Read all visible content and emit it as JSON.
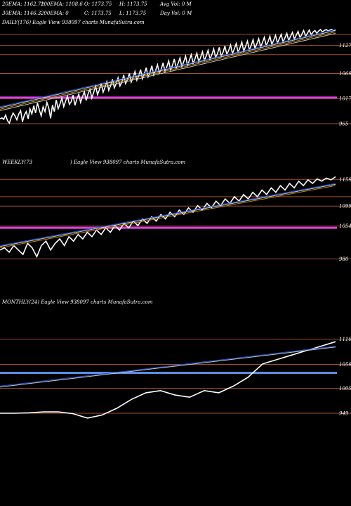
{
  "header": {
    "line1": [
      "20EMA: 1162.72",
      "100EMA: 1108.6",
      "O: 1173.75",
      "H: 1173.75",
      "Avg Vol: 0  M"
    ],
    "line2": [
      "30EMA: 1146.3",
      "200EMA: 0",
      "C: 1173.75",
      "L: 1173.75",
      "Day Vol: 0  M"
    ]
  },
  "colors": {
    "background": "#000000",
    "price": "#ffffff",
    "ema_fast": "#1f4fe0",
    "ema_slow": "#c8c8c8",
    "ema_orange": "#b8860b",
    "level": "#a0522d",
    "magenta_band": "#e040e0",
    "blue_band": "#5b8fe6"
  },
  "chart_data": [
    {
      "type": "line",
      "title": "DAILY(176) Eagle  View  938097 charts MunafaSutra.com",
      "ticks": [
        1127,
        1069,
        1017,
        965
      ],
      "ylim": [
        930,
        1160
      ],
      "band": {
        "value": 1019,
        "color": "magenta"
      },
      "levels": [
        1150,
        1127,
        1108,
        1069,
        1017,
        965
      ],
      "grid": false,
      "series": [
        {
          "role": "price",
          "values": [
            975,
            977,
            974,
            983,
            971,
            966,
            978,
            987,
            981,
            973,
            985,
            992,
            969,
            983,
            990,
            975,
            996,
            985,
            1002,
            987,
            1008,
            993,
            981,
            1000,
            990,
            1009,
            998,
            976,
            1004,
            990,
            1014,
            996,
            1006,
            1018,
            1000,
            1012,
            1022,
            1005,
            1011,
            1024,
            1003,
            1016,
            1026,
            1009,
            1021,
            1031,
            1013,
            1027,
            1036,
            1018,
            1030,
            1043,
            1025,
            1035,
            1049,
            1030,
            1040,
            1052,
            1034,
            1044,
            1057,
            1039,
            1048,
            1060,
            1043,
            1051,
            1066,
            1048,
            1056,
            1069,
            1051,
            1061,
            1073,
            1055,
            1064,
            1077,
            1058,
            1068,
            1081,
            1062,
            1071,
            1085,
            1066,
            1075,
            1087,
            1070,
            1078,
            1091,
            1073,
            1083,
            1095,
            1076,
            1086,
            1099,
            1080,
            1090,
            1101,
            1083,
            1093,
            1105,
            1086,
            1096,
            1108,
            1090,
            1099,
            1111,
            1093,
            1102,
            1114,
            1096,
            1105,
            1117,
            1099,
            1108,
            1120,
            1102,
            1110,
            1123,
            1105,
            1113,
            1126,
            1108,
            1117,
            1128,
            1110,
            1120,
            1131,
            1113,
            1122,
            1134,
            1115,
            1125,
            1136,
            1118,
            1127,
            1139,
            1121,
            1130,
            1141,
            1124,
            1133,
            1144,
            1127,
            1135,
            1146,
            1129,
            1138,
            1148,
            1132,
            1141,
            1150,
            1134,
            1143,
            1152,
            1137,
            1146,
            1154,
            1140,
            1148,
            1156,
            1143,
            1150,
            1158,
            1146,
            1152,
            1159,
            1149,
            1155,
            1158,
            1152,
            1157,
            1160,
            1155,
            1158,
            1160,
            1157,
            1159,
            1160,
            1158,
            1160
          ]
        },
        {
          "role": "ema20",
          "values": [
            1000,
            1002,
            1004,
            1006,
            1008,
            1010,
            1012,
            1014,
            1016,
            1018,
            1020,
            1022,
            1024,
            1026,
            1028,
            1030,
            1032,
            1034,
            1036,
            1038,
            1040,
            1042,
            1044,
            1046,
            1048,
            1050,
            1052,
            1054,
            1056,
            1058,
            1060,
            1062,
            1064,
            1066,
            1068,
            1070,
            1072,
            1074,
            1076,
            1078,
            1080,
            1082,
            1084,
            1086,
            1088,
            1090,
            1092,
            1094,
            1096,
            1098,
            1100,
            1102,
            1104,
            1106,
            1108,
            1110,
            1112,
            1114,
            1116,
            1118,
            1120,
            1122,
            1124,
            1126,
            1128,
            1130,
            1132,
            1134,
            1136,
            1138,
            1140,
            1142,
            1144,
            1146,
            1148,
            1150,
            1152,
            1154,
            1156,
            1158,
            1160
          ]
        },
        {
          "role": "ema30",
          "values": [
            998,
            1000,
            1002,
            1004,
            1006,
            1008,
            1010,
            1012,
            1014,
            1016,
            1018,
            1020,
            1022,
            1024,
            1026,
            1028,
            1030,
            1032,
            1034,
            1036,
            1038,
            1040,
            1042,
            1044,
            1046,
            1048,
            1050,
            1052,
            1054,
            1056,
            1058,
            1060,
            1062,
            1064,
            1066,
            1068,
            1070,
            1072,
            1074,
            1076,
            1078,
            1080,
            1082,
            1084,
            1086,
            1088,
            1090,
            1092,
            1094,
            1096,
            1098,
            1100,
            1102,
            1104,
            1106,
            1108,
            1110,
            1112,
            1114,
            1116,
            1118,
            1120,
            1122,
            1124,
            1126,
            1128,
            1130,
            1132,
            1134,
            1136,
            1138,
            1140,
            1142,
            1144,
            1146,
            1148,
            1150,
            1152,
            1154,
            1156,
            1158
          ]
        },
        {
          "role": "ema100",
          "values": [
            995,
            997,
            999,
            1001,
            1003,
            1005,
            1007,
            1009,
            1011,
            1013,
            1015,
            1017,
            1019,
            1021,
            1023,
            1025,
            1027,
            1029,
            1031,
            1033,
            1035,
            1037,
            1039,
            1041,
            1043,
            1045,
            1047,
            1049,
            1051,
            1053,
            1055,
            1057,
            1059,
            1061,
            1063,
            1065,
            1067,
            1069,
            1071,
            1073,
            1075,
            1077,
            1079,
            1081,
            1083,
            1085,
            1087,
            1089,
            1091,
            1093,
            1095,
            1097,
            1099,
            1101,
            1103,
            1105,
            1107,
            1109,
            1111,
            1113,
            1115,
            1117,
            1119,
            1121,
            1123,
            1125,
            1127,
            1129,
            1131,
            1133,
            1135,
            1137,
            1139,
            1141,
            1143,
            1145,
            1147,
            1149,
            1151,
            1153,
            1155
          ]
        },
        {
          "role": "ema200",
          "values": [
            992,
            994,
            996,
            998,
            1000,
            1002,
            1004,
            1006,
            1008,
            1010,
            1012,
            1014,
            1016,
            1018,
            1020,
            1022,
            1024,
            1026,
            1028,
            1030,
            1032,
            1034,
            1036,
            1038,
            1040,
            1042,
            1044,
            1046,
            1048,
            1050,
            1052,
            1054,
            1056,
            1058,
            1060,
            1062,
            1064,
            1066,
            1068,
            1070,
            1072,
            1074,
            1076,
            1078,
            1080,
            1082,
            1084,
            1086,
            1088,
            1090,
            1092,
            1094,
            1096,
            1098,
            1100,
            1102,
            1104,
            1106,
            1108,
            1110,
            1112,
            1114,
            1116,
            1118,
            1120,
            1122,
            1124,
            1126,
            1128,
            1130,
            1132,
            1134,
            1136,
            1138,
            1140,
            1142,
            1144,
            1146,
            1148,
            1150,
            1152
          ]
        }
      ]
    },
    {
      "type": "line",
      "title_left": "WEEKLY(73",
      "title_right": ") Eagle  View  938097 charts MunafaSutra.com",
      "ticks": [
        1159,
        1099,
        1054,
        980
      ],
      "ylim": [
        930,
        1180
      ],
      "band": {
        "value": 1050,
        "color": "magenta"
      },
      "levels": [
        1159,
        1120,
        1099,
        1054,
        980
      ],
      "grid": false,
      "series": [
        {
          "role": "price",
          "values": [
            1000,
            1005,
            995,
            1010,
            1000,
            990,
            1015,
            1005,
            985,
            1010,
            1020,
            1000,
            1015,
            1025,
            1010,
            1030,
            1020,
            1035,
            1025,
            1040,
            1030,
            1045,
            1035,
            1050,
            1040,
            1055,
            1045,
            1060,
            1050,
            1065,
            1055,
            1070,
            1060,
            1075,
            1065,
            1080,
            1070,
            1085,
            1075,
            1090,
            1080,
            1095,
            1085,
            1100,
            1090,
            1105,
            1095,
            1110,
            1100,
            1115,
            1105,
            1120,
            1110,
            1125,
            1115,
            1130,
            1120,
            1135,
            1125,
            1140,
            1130,
            1145,
            1135,
            1150,
            1140,
            1155,
            1145,
            1158,
            1150,
            1160,
            1155,
            1162,
            1158,
            1165
          ]
        },
        {
          "role": "ema20",
          "values": [
            1010,
            1020,
            1030,
            1040,
            1050,
            1060,
            1070,
            1080,
            1090,
            1100,
            1110,
            1120,
            1130,
            1140,
            1150
          ]
        },
        {
          "role": "ema30",
          "values": [
            1008,
            1018,
            1028,
            1038,
            1048,
            1058,
            1068,
            1078,
            1088,
            1098,
            1108,
            1118,
            1128,
            1138,
            1148
          ]
        },
        {
          "role": "ema100",
          "values": [
            1005,
            1015,
            1025,
            1035,
            1045,
            1055,
            1065,
            1075,
            1085,
            1095,
            1105,
            1115,
            1125,
            1135,
            1145
          ]
        }
      ]
    },
    {
      "type": "line",
      "title": "MONTHLY(24) Eagle  View  938097 charts MunafaSutra.com",
      "ticks": [
        1116,
        1059,
        1005,
        949
      ],
      "ylim": [
        930,
        1180
      ],
      "band": {
        "value": 1040,
        "color": "blue"
      },
      "levels": [
        1116,
        1059,
        1005,
        949
      ],
      "grid": false,
      "series": [
        {
          "role": "price",
          "values": [
            949,
            949,
            950,
            952,
            952,
            948,
            938,
            945,
            960,
            980,
            995,
            1000,
            990,
            985,
            1000,
            995,
            1010,
            1030,
            1060,
            1070,
            1080,
            1090,
            1100,
            1110
          ]
        },
        {
          "role": "ema20",
          "values": [
            1010,
            1020,
            1030,
            1040,
            1050,
            1060,
            1070,
            1080,
            1090,
            1100
          ]
        },
        {
          "role": "ema30",
          "values": [
            1008,
            1018,
            1028,
            1038,
            1048,
            1058,
            1068,
            1078,
            1088,
            1098
          ]
        }
      ]
    }
  ]
}
